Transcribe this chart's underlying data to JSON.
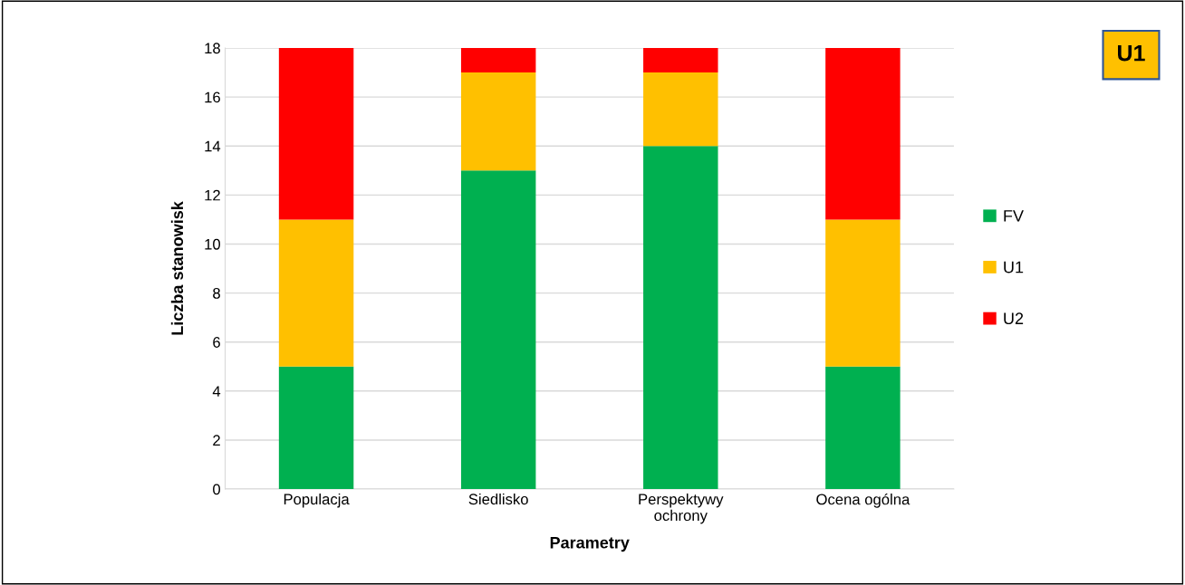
{
  "chart_data": {
    "type": "bar",
    "stacked": true,
    "xlabel": "Parametry",
    "ylabel": "Liczba stanowisk",
    "categories": [
      "Populacja",
      "Siedlisko",
      "Perspektywy\nochrony",
      "Ocena ogólna"
    ],
    "series": [
      {
        "name": "FV",
        "color": "#00b050",
        "values": [
          5,
          13,
          14,
          5
        ]
      },
      {
        "name": "U1",
        "color": "#ffc000",
        "values": [
          6,
          4,
          3,
          6
        ]
      },
      {
        "name": "U2",
        "color": "#ff0000",
        "values": [
          7,
          1,
          1,
          7
        ]
      }
    ],
    "ylim": [
      0,
      18
    ],
    "yticks": [
      0,
      2,
      4,
      6,
      8,
      10,
      12,
      14,
      16,
      18
    ],
    "grid": "y",
    "legend": "right",
    "annotations": [
      "U1"
    ]
  }
}
